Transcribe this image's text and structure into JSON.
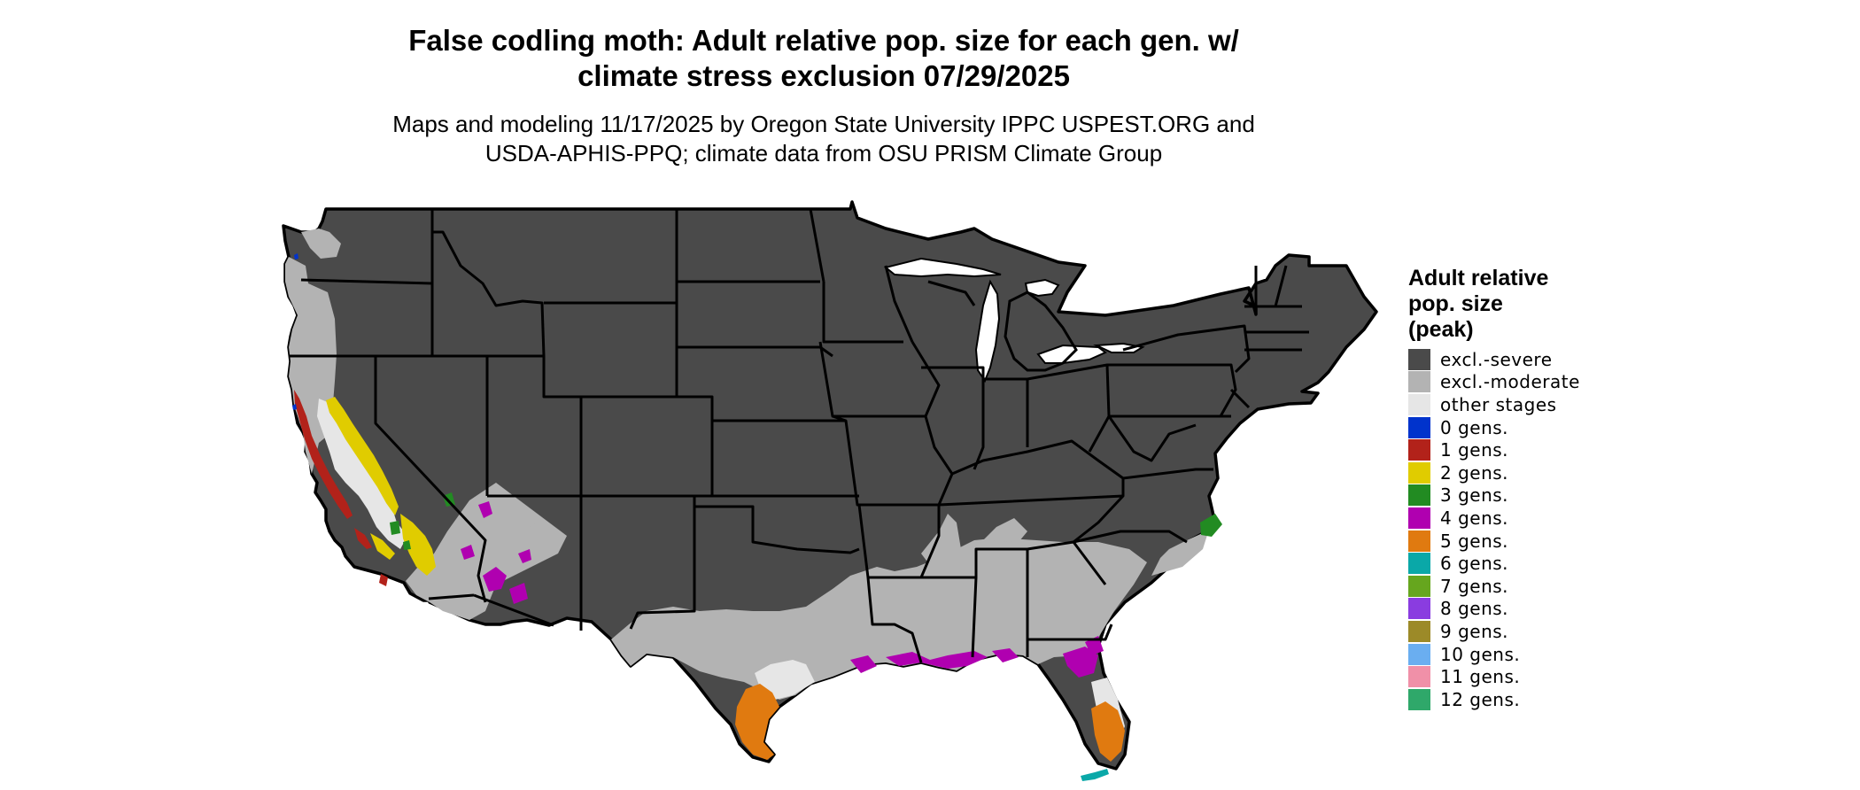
{
  "title": {
    "line1": "False codling moth: Adult relative pop. size for each gen. w/",
    "line2": "climate stress exclusion 07/29/2025"
  },
  "subtitle": {
    "line1": "Maps and modeling 11/17/2025 by Oregon State University IPPC USPEST.ORG and",
    "line2": "USDA-APHIS-PPQ; climate data from OSU PRISM Climate Group"
  },
  "legend": {
    "title_lines": [
      "Adult relative",
      "pop. size",
      "(peak)"
    ],
    "items": [
      {
        "label": "excl.-severe",
        "color": "#4a4a4a"
      },
      {
        "label": "excl.-moderate",
        "color": "#b3b3b3"
      },
      {
        "label": "other stages",
        "color": "#e6e6e6"
      },
      {
        "label": "0 gens.",
        "color": "#0033cc"
      },
      {
        "label": "1 gens.",
        "color": "#b2221a"
      },
      {
        "label": "2 gens.",
        "color": "#e0cc00"
      },
      {
        "label": "3 gens.",
        "color": "#228b22"
      },
      {
        "label": "4 gens.",
        "color": "#b000b0"
      },
      {
        "label": "5 gens.",
        "color": "#e07a10"
      },
      {
        "label": "6 gens.",
        "color": "#0aa8a8"
      },
      {
        "label": "7 gens.",
        "color": "#66a61e"
      },
      {
        "label": "8 gens.",
        "color": "#8a3ce0"
      },
      {
        "label": "9 gens.",
        "color": "#9c8a28"
      },
      {
        "label": "10 gens.",
        "color": "#6aaef0"
      },
      {
        "label": "11 gens.",
        "color": "#f090a8"
      },
      {
        "label": "12 gens.",
        "color": "#2fa86a"
      }
    ]
  }
}
